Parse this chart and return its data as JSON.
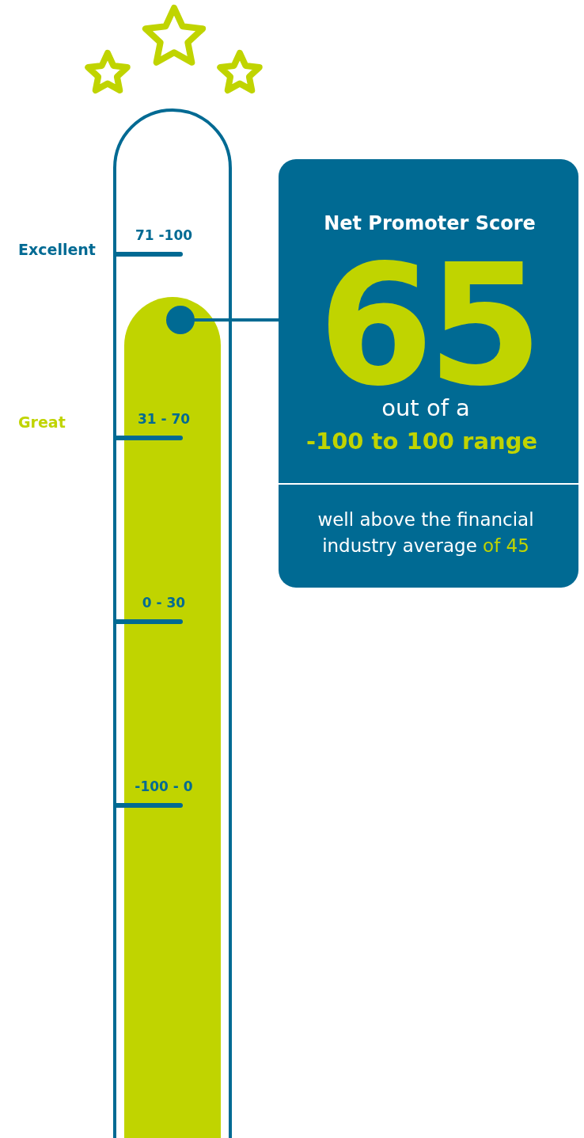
{
  "chart_data": {
    "type": "other",
    "title": "Net Promoter Score",
    "values": [
      65
    ],
    "color": "#006a93",
    "data_labels": true,
    "annotations": [
      "71 -100",
      "31 - 70",
      "0 - 30",
      "-100 - 0",
      "Excellent",
      "Great",
      "out of a",
      "-100 to 100 range",
      "well above the financial",
      "industry average",
      "of 45"
    ]
  }
}
